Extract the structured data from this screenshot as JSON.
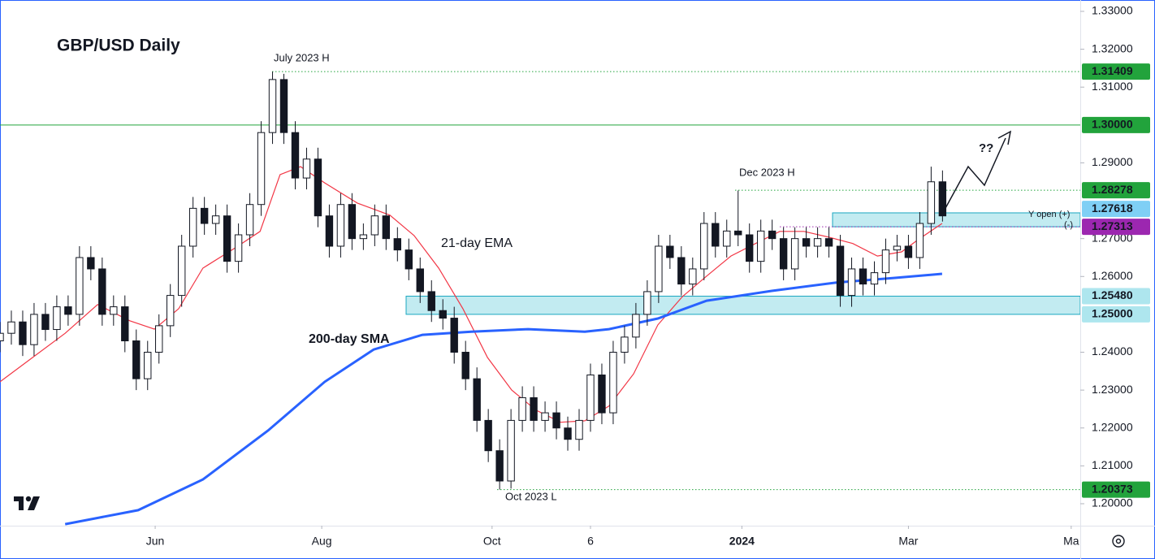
{
  "chart_data": {
    "type": "candlestick",
    "title": "GBP/USD Daily",
    "xlim": [
      0,
      285.4
    ],
    "ylim": [
      1.1942,
      1.333
    ],
    "xticks": [
      {
        "value": 41,
        "label": "Jun"
      },
      {
        "value": 85,
        "label": "Aug"
      },
      {
        "value": 130,
        "label": "Oct"
      },
      {
        "value": 156,
        "label": "6"
      },
      {
        "value": 196,
        "label": "2024"
      },
      {
        "value": 240,
        "label": "Mar"
      },
      {
        "value": 283,
        "label": "Ma"
      }
    ],
    "yticks": [
      {
        "value": 1.33,
        "label": "1.33000"
      },
      {
        "value": 1.32,
        "label": "1.32000"
      },
      {
        "value": 1.31,
        "label": "1.31000"
      },
      {
        "value": 1.29,
        "label": "1.29000"
      },
      {
        "value": 1.27,
        "label": "1.27000"
      },
      {
        "value": 1.26,
        "label": "1.26000"
      },
      {
        "value": 1.24,
        "label": "1.24000"
      },
      {
        "value": 1.23,
        "label": "1.23000"
      },
      {
        "value": 1.22,
        "label": "1.22000"
      },
      {
        "value": 1.21,
        "label": "1.21000"
      },
      {
        "value": 1.2,
        "label": "1.20000"
      }
    ],
    "up_color": "#089981",
    "down_color": "#f23645",
    "candles": {
      "x": [
        0,
        3,
        6,
        9,
        12,
        15,
        18,
        21,
        24,
        27,
        30,
        33,
        36,
        39,
        42,
        45,
        48,
        51,
        54,
        57,
        60,
        63,
        66,
        69,
        72,
        75,
        78,
        81,
        84,
        87,
        90,
        93,
        96,
        99,
        102,
        105,
        108,
        111,
        114,
        117,
        120,
        123,
        126,
        129,
        132,
        135,
        138,
        141,
        144,
        147,
        150,
        153,
        156,
        159,
        162,
        165,
        168,
        171,
        174,
        177,
        180,
        183,
        186,
        189,
        192,
        195,
        198,
        201,
        204,
        207,
        210,
        213,
        216,
        219,
        222,
        225,
        228,
        231,
        234,
        237,
        240,
        243,
        246,
        249
      ],
      "open": [
        1.243,
        1.245,
        1.248,
        1.242,
        1.25,
        1.246,
        1.252,
        1.25,
        1.265,
        1.262,
        1.25,
        1.252,
        1.243,
        1.233,
        1.24,
        1.247,
        1.255,
        1.268,
        1.278,
        1.274,
        1.276,
        1.264,
        1.271,
        1.279,
        1.298,
        1.312,
        1.298,
        1.286,
        1.291,
        1.276,
        1.268,
        1.279,
        1.27,
        1.271,
        1.276,
        1.27,
        1.267,
        1.262,
        1.256,
        1.251,
        1.249,
        1.24,
        1.233,
        1.222,
        1.214,
        1.206,
        1.222,
        1.228,
        1.222,
        1.224,
        1.22,
        1.217,
        1.222,
        1.234,
        1.224,
        1.24,
        1.244,
        1.25,
        1.256,
        1.268,
        1.265,
        1.258,
        1.262,
        1.274,
        1.268,
        1.272,
        1.271,
        1.264,
        1.272,
        1.27,
        1.262,
        1.27,
        1.268,
        1.27,
        1.268,
        1.255,
        1.262,
        1.258,
        1.261,
        1.267,
        1.268,
        1.265,
        1.274,
        1.285
      ],
      "high": [
        1.248,
        1.251,
        1.251,
        1.253,
        1.253,
        1.255,
        1.255,
        1.268,
        1.268,
        1.265,
        1.255,
        1.255,
        1.246,
        1.243,
        1.25,
        1.258,
        1.271,
        1.281,
        1.281,
        1.279,
        1.279,
        1.274,
        1.282,
        1.301,
        1.31409,
        1.3135,
        1.301,
        1.294,
        1.294,
        1.279,
        1.282,
        1.282,
        1.274,
        1.279,
        1.279,
        1.273,
        1.27,
        1.265,
        1.259,
        1.254,
        1.252,
        1.243,
        1.236,
        1.225,
        1.217,
        1.225,
        1.231,
        1.231,
        1.227,
        1.227,
        1.223,
        1.225,
        1.237,
        1.237,
        1.243,
        1.247,
        1.253,
        1.259,
        1.271,
        1.271,
        1.268,
        1.265,
        1.277,
        1.277,
        1.275,
        1.2827,
        1.274,
        1.275,
        1.275,
        1.273,
        1.273,
        1.273,
        1.273,
        1.273,
        1.271,
        1.265,
        1.265,
        1.264,
        1.27,
        1.271,
        1.271,
        1.277,
        1.289,
        1.288
      ],
      "low": [
        1.24,
        1.242,
        1.239,
        1.239,
        1.243,
        1.243,
        1.247,
        1.247,
        1.259,
        1.247,
        1.247,
        1.24,
        1.23,
        1.23,
        1.237,
        1.244,
        1.252,
        1.265,
        1.271,
        1.271,
        1.261,
        1.261,
        1.268,
        1.276,
        1.295,
        1.295,
        1.283,
        1.283,
        1.273,
        1.265,
        1.265,
        1.267,
        1.267,
        1.268,
        1.267,
        1.264,
        1.259,
        1.253,
        1.248,
        1.246,
        1.237,
        1.23,
        1.219,
        1.211,
        1.20373,
        1.204,
        1.219,
        1.219,
        1.219,
        1.217,
        1.214,
        1.214,
        1.219,
        1.221,
        1.221,
        1.237,
        1.241,
        1.247,
        1.253,
        1.262,
        1.255,
        1.255,
        1.259,
        1.265,
        1.265,
        1.268,
        1.261,
        1.261,
        1.267,
        1.259,
        1.259,
        1.265,
        1.265,
        1.265,
        1.252,
        1.252,
        1.255,
        1.255,
        1.258,
        1.264,
        1.262,
        1.262,
        1.271,
        1.2745
      ],
      "close": [
        1.245,
        1.248,
        1.242,
        1.25,
        1.246,
        1.252,
        1.25,
        1.265,
        1.262,
        1.25,
        1.252,
        1.243,
        1.233,
        1.24,
        1.247,
        1.255,
        1.268,
        1.278,
        1.274,
        1.276,
        1.264,
        1.271,
        1.279,
        1.298,
        1.312,
        1.298,
        1.286,
        1.291,
        1.276,
        1.268,
        1.279,
        1.27,
        1.271,
        1.276,
        1.27,
        1.267,
        1.262,
        1.256,
        1.251,
        1.249,
        1.24,
        1.233,
        1.222,
        1.214,
        1.206,
        1.222,
        1.228,
        1.222,
        1.224,
        1.22,
        1.217,
        1.222,
        1.234,
        1.224,
        1.24,
        1.244,
        1.25,
        1.256,
        1.268,
        1.265,
        1.258,
        1.262,
        1.274,
        1.268,
        1.272,
        1.271,
        1.264,
        1.272,
        1.27,
        1.262,
        1.27,
        1.268,
        1.27,
        1.268,
        1.255,
        1.262,
        1.258,
        1.261,
        1.267,
        1.268,
        1.265,
        1.274,
        1.285,
        1.276
      ]
    },
    "series": [
      {
        "name": "21-day EMA",
        "color": "#f23645",
        "x": [
          0,
          8.6,
          17.2,
          25.8,
          34.3,
          40.8,
          47.2,
          53.6,
          62.2,
          68.7,
          74,
          79.4,
          85.8,
          94.4,
          103,
          109.4,
          115.9,
          122.3,
          128.8,
          135.2,
          141.6,
          148.1,
          154.5,
          160.9,
          167.4,
          173.8,
          180.3,
          186.7,
          193.1,
          199.6,
          206,
          212.4,
          218.9,
          225.3,
          231.8,
          238.2,
          242.5,
          248.9
        ],
        "values": [
          1.2322,
          1.2386,
          1.245,
          1.2526,
          1.2483,
          1.2461,
          1.2515,
          1.2622,
          1.2676,
          1.2719,
          1.2869,
          1.289,
          1.2847,
          1.2794,
          1.2762,
          1.2708,
          1.2622,
          1.2515,
          1.2386,
          1.23,
          1.2247,
          1.2215,
          1.2219,
          1.2258,
          1.2343,
          1.2472,
          1.2547,
          1.2601,
          1.2654,
          1.2687,
          1.2719,
          1.2719,
          1.2704,
          1.2687,
          1.2654,
          1.2665,
          1.2697,
          1.274
        ]
      },
      {
        "name": "200-day SMA",
        "color": "#2962ff",
        "x": [
          17.2,
          36.5,
          53.6,
          70.8,
          85.8,
          98.7,
          111.6,
          124.5,
          139.5,
          154.5,
          160.9,
          173.8,
          186.7,
          203.9,
          221,
          236.1,
          248.9
        ],
        "values": [
          1.1946,
          1.1983,
          1.2064,
          1.2193,
          1.2322,
          1.2407,
          1.2446,
          1.2454,
          1.2461,
          1.2454,
          1.2461,
          1.2489,
          1.2536,
          1.2562,
          1.2584,
          1.2596,
          1.2607
        ]
      }
    ],
    "zones": [
      {
        "top": 1.2548,
        "bottom": 1.25
      },
      {
        "top": 1.2768,
        "bottom": 1.27313
      }
    ],
    "levels": [
      {
        "value": 1.31409,
        "color": "#22a33c"
      },
      {
        "value": 1.3,
        "label": "1.30000",
        "color": "#22a33c"
      },
      {
        "value": 1.28278,
        "color": "#22a33c"
      },
      {
        "value": 1.27618,
        "color": "#7fcff5"
      },
      {
        "value": 1.27313,
        "color": "#9c27b0"
      },
      {
        "value": 1.2548,
        "label": "1.25480",
        "color": "#aee6ee"
      },
      {
        "value": 1.25,
        "label": "1.25000",
        "color": "#aee6ee"
      },
      {
        "value": 1.20373,
        "color": "#22a33c"
      }
    ],
    "annotations": [
      "July 2023 H",
      "Dec 2023 H",
      "Oct 2023 L",
      "??",
      "Y open (+)",
      "(-)"
    ]
  }
}
